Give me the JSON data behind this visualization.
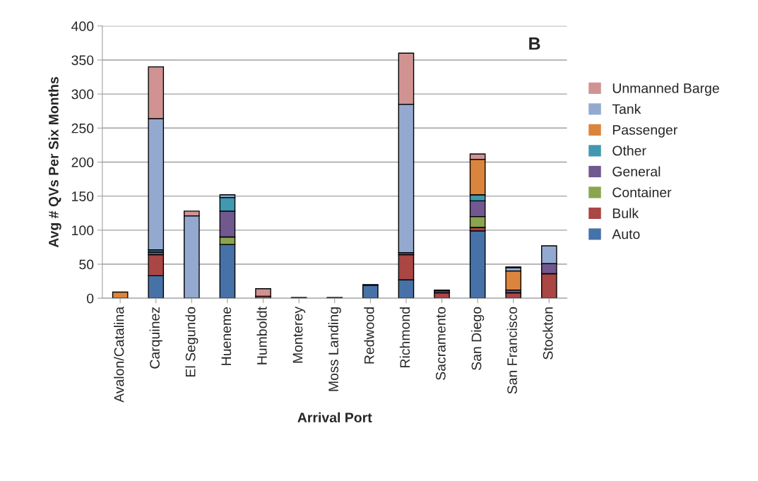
{
  "chart_data": {
    "type": "bar",
    "title": "B",
    "xlabel": "Arrival Port",
    "ylabel": "Avg # QVs Per Six Months",
    "categories": [
      "Avalon/Catalina",
      "Carquinez",
      "El Segundo",
      "Hueneme",
      "Humboldt",
      "Monterey",
      "Moss Landing",
      "Redwood",
      "Richmond",
      "Sacramento",
      "San Diego",
      "San Francisco",
      "Stockton"
    ],
    "stacked": true,
    "ylim": [
      0,
      400
    ],
    "yticks": [
      0,
      50,
      100,
      150,
      200,
      250,
      300,
      350,
      400
    ],
    "grid": "y",
    "legend": "right",
    "series": [
      {
        "name": "Auto",
        "color": "#4672a8",
        "values": [
          0,
          33,
          0,
          79,
          0,
          0,
          1,
          19,
          27,
          0,
          99,
          0,
          0
        ]
      },
      {
        "name": "Bulk",
        "color": "#aa4644",
        "values": [
          0,
          31,
          0,
          0,
          3,
          1,
          0,
          1,
          37,
          8,
          5,
          8,
          36
        ]
      },
      {
        "name": "Container",
        "color": "#89a54e",
        "values": [
          0,
          0,
          0,
          11,
          0,
          0,
          0,
          0,
          0,
          0,
          16,
          0,
          0
        ]
      },
      {
        "name": "General",
        "color": "#71588f",
        "values": [
          0,
          4,
          0,
          38,
          0,
          0,
          0,
          0,
          3,
          3,
          23,
          4,
          15
        ]
      },
      {
        "name": "Other",
        "color": "#4198af",
        "values": [
          0,
          3,
          0,
          20,
          0,
          0,
          0,
          0,
          0,
          0,
          9,
          0,
          0
        ]
      },
      {
        "name": "Passenger",
        "color": "#db843d",
        "values": [
          9,
          0,
          0,
          0,
          0,
          0,
          0,
          0,
          0,
          0,
          52,
          28,
          0
        ]
      },
      {
        "name": "Tank",
        "color": "#93a9cf",
        "values": [
          0,
          193,
          121,
          4,
          0,
          0,
          0,
          0,
          218,
          1,
          0,
          5,
          26
        ]
      },
      {
        "name": "Unmanned Barge",
        "color": "#d09392",
        "values": [
          0,
          76,
          7,
          0,
          11,
          0,
          0,
          0,
          75,
          0,
          8,
          1,
          0
        ]
      }
    ]
  }
}
